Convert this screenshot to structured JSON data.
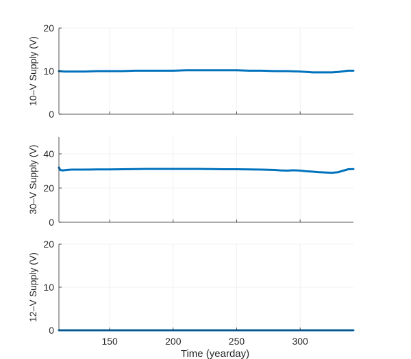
{
  "chart_data": [
    {
      "type": "line",
      "ylabel": "10–V Supply (V)",
      "xlabel": "",
      "xlim": [
        110,
        342
      ],
      "ylim": [
        0,
        20
      ],
      "xticks": [
        150,
        200,
        250,
        300
      ],
      "yticks": [
        0,
        10,
        20
      ],
      "show_xticklabels": false,
      "grid": true,
      "line_color": "#0072BD",
      "series": [
        {
          "x": [
            110,
            115,
            120,
            130,
            140,
            150,
            160,
            170,
            180,
            190,
            200,
            210,
            220,
            230,
            240,
            250,
            260,
            270,
            280,
            290,
            300,
            305,
            310,
            315,
            320,
            325,
            330,
            335,
            338,
            342
          ],
          "values": [
            10.0,
            9.9,
            9.9,
            9.9,
            10.0,
            10.0,
            10.0,
            10.1,
            10.1,
            10.1,
            10.1,
            10.2,
            10.2,
            10.2,
            10.2,
            10.2,
            10.1,
            10.1,
            10.0,
            10.0,
            9.9,
            9.8,
            9.7,
            9.7,
            9.7,
            9.7,
            9.8,
            10.0,
            10.1,
            10.1
          ]
        }
      ]
    },
    {
      "type": "line",
      "ylabel": "30–V Supply (V)",
      "xlabel": "",
      "xlim": [
        110,
        342
      ],
      "ylim": [
        0,
        50
      ],
      "xticks": [
        150,
        200,
        250,
        300
      ],
      "yticks": [
        0,
        20,
        40
      ],
      "show_xticklabels": false,
      "grid": true,
      "line_color": "#0072BD",
      "series": [
        {
          "x": [
            110,
            111,
            113,
            116,
            120,
            130,
            140,
            150,
            160,
            170,
            180,
            190,
            200,
            210,
            220,
            230,
            240,
            250,
            260,
            270,
            280,
            285,
            290,
            295,
            300,
            305,
            310,
            315,
            320,
            325,
            330,
            335,
            338,
            342
          ],
          "values": [
            32.0,
            30.6,
            30.3,
            30.6,
            30.8,
            30.8,
            30.9,
            30.9,
            31.0,
            31.1,
            31.2,
            31.2,
            31.2,
            31.2,
            31.2,
            31.1,
            31.0,
            31.0,
            30.9,
            30.8,
            30.6,
            30.3,
            30.2,
            30.4,
            30.2,
            29.8,
            29.6,
            29.3,
            29.1,
            28.9,
            29.3,
            30.4,
            31.0,
            31.1
          ]
        }
      ]
    },
    {
      "type": "line",
      "ylabel": "12–V Supply (V)",
      "xlabel": "Time (yearday)",
      "xlim": [
        110,
        342
      ],
      "ylim": [
        0,
        20
      ],
      "xticks": [
        150,
        200,
        250,
        300
      ],
      "yticks": [
        0,
        10,
        20
      ],
      "show_xticklabels": true,
      "grid": true,
      "line_color": "#0072BD",
      "series": [
        {
          "x": [
            110,
            150,
            200,
            250,
            300,
            342
          ],
          "values": [
            0,
            0,
            0,
            0,
            0,
            0
          ]
        }
      ]
    }
  ]
}
